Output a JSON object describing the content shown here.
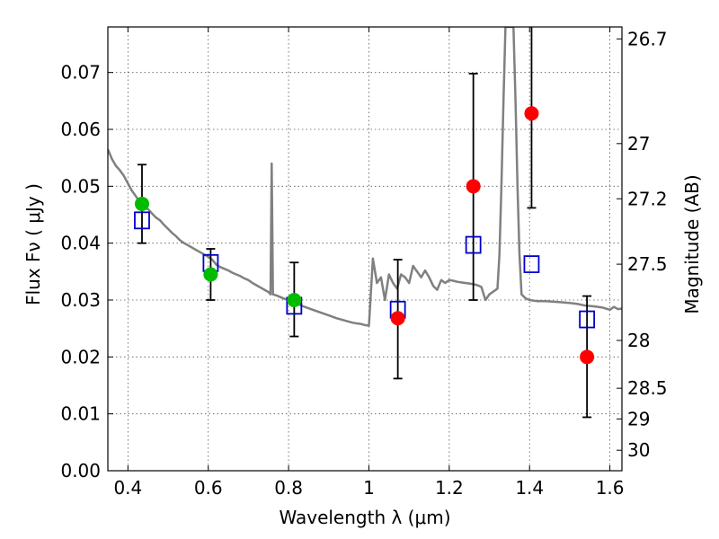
{
  "chart_data": {
    "type": "scatter",
    "xlabel": "Wavelength  λ (μm)",
    "ylabel": "Flux  Fν  ( μJy )",
    "y2label": "Magnitude (AB)",
    "xlim": [
      0.35,
      1.63
    ],
    "ylim": [
      0.0,
      0.078
    ],
    "grid": true,
    "x_ticks": [
      0.4,
      0.6,
      0.8,
      1.0,
      1.2,
      1.4,
      1.6
    ],
    "x_tick_labels": [
      "0.4",
      "0.6",
      "0.8",
      "1",
      "1.2",
      "1.4",
      "1.6"
    ],
    "y_ticks": [
      0.0,
      0.01,
      0.02,
      0.03,
      0.04,
      0.05,
      0.06,
      0.07
    ],
    "y_tick_labels": [
      "0.00",
      "0.01",
      "0.02",
      "0.03",
      "0.04",
      "0.05",
      "0.06",
      "0.07"
    ],
    "y2_ticks": [
      {
        "flux": 0.0759,
        "label": "26.7"
      },
      {
        "flux": 0.0575,
        "label": "27"
      },
      {
        "flux": 0.0478,
        "label": "27.2"
      },
      {
        "flux": 0.0363,
        "label": "27.5"
      },
      {
        "flux": 0.0229,
        "label": "28"
      },
      {
        "flux": 0.0145,
        "label": "28.5"
      },
      {
        "flux": 0.0091,
        "label": "29"
      },
      {
        "flux": 0.0036,
        "label": "30"
      }
    ],
    "colors": {
      "model_line": "#808080",
      "model_points": "#0000cc",
      "detections": "#00bb00",
      "nondetections": "#ff0000",
      "errorbars": "#000000"
    },
    "template_spectrum": [
      [
        0.35,
        0.0565
      ],
      [
        0.36,
        0.0548
      ],
      [
        0.37,
        0.0536
      ],
      [
        0.38,
        0.0528
      ],
      [
        0.39,
        0.0518
      ],
      [
        0.4,
        0.0505
      ],
      [
        0.41,
        0.0492
      ],
      [
        0.42,
        0.0482
      ],
      [
        0.43,
        0.0472
      ],
      [
        0.44,
        0.0462
      ],
      [
        0.45,
        0.046
      ],
      [
        0.46,
        0.0452
      ],
      [
        0.47,
        0.0445
      ],
      [
        0.48,
        0.044
      ],
      [
        0.49,
        0.0432
      ],
      [
        0.5,
        0.0425
      ],
      [
        0.51,
        0.0418
      ],
      [
        0.52,
        0.0412
      ],
      [
        0.53,
        0.0405
      ],
      [
        0.54,
        0.04
      ],
      [
        0.55,
        0.0396
      ],
      [
        0.56,
        0.0392
      ],
      [
        0.57,
        0.0388
      ],
      [
        0.58,
        0.0384
      ],
      [
        0.59,
        0.038
      ],
      [
        0.6,
        0.0376
      ],
      [
        0.61,
        0.0371
      ],
      [
        0.62,
        0.0362
      ],
      [
        0.63,
        0.0358
      ],
      [
        0.64,
        0.0355
      ],
      [
        0.65,
        0.0352
      ],
      [
        0.66,
        0.0348
      ],
      [
        0.67,
        0.0345
      ],
      [
        0.68,
        0.0342
      ],
      [
        0.69,
        0.0338
      ],
      [
        0.7,
        0.0335
      ],
      [
        0.71,
        0.033
      ],
      [
        0.72,
        0.0326
      ],
      [
        0.73,
        0.0322
      ],
      [
        0.74,
        0.0318
      ],
      [
        0.75,
        0.0314
      ],
      [
        0.755,
        0.031
      ],
      [
        0.758,
        0.054
      ],
      [
        0.761,
        0.031
      ],
      [
        0.77,
        0.0308
      ],
      [
        0.78,
        0.0305
      ],
      [
        0.79,
        0.0302
      ],
      [
        0.8,
        0.03
      ],
      [
        0.81,
        0.0297
      ],
      [
        0.82,
        0.0294
      ],
      [
        0.84,
        0.0288
      ],
      [
        0.86,
        0.0283
      ],
      [
        0.88,
        0.0278
      ],
      [
        0.9,
        0.0273
      ],
      [
        0.92,
        0.0268
      ],
      [
        0.94,
        0.0264
      ],
      [
        0.96,
        0.026
      ],
      [
        0.98,
        0.0258
      ],
      [
        0.99,
        0.0256
      ],
      [
        1.0,
        0.0255
      ],
      [
        1.01,
        0.0373
      ],
      [
        1.02,
        0.033
      ],
      [
        1.03,
        0.034
      ],
      [
        1.04,
        0.03
      ],
      [
        1.05,
        0.0345
      ],
      [
        1.06,
        0.033
      ],
      [
        1.07,
        0.032
      ],
      [
        1.08,
        0.0345
      ],
      [
        1.09,
        0.034
      ],
      [
        1.1,
        0.033
      ],
      [
        1.11,
        0.036
      ],
      [
        1.12,
        0.035
      ],
      [
        1.13,
        0.034
      ],
      [
        1.14,
        0.0352
      ],
      [
        1.15,
        0.034
      ],
      [
        1.16,
        0.0325
      ],
      [
        1.17,
        0.0318
      ],
      [
        1.18,
        0.0335
      ],
      [
        1.19,
        0.033
      ],
      [
        1.2,
        0.0335
      ],
      [
        1.21,
        0.0334
      ],
      [
        1.22,
        0.0332
      ],
      [
        1.23,
        0.0331
      ],
      [
        1.24,
        0.033
      ],
      [
        1.25,
        0.0329
      ],
      [
        1.26,
        0.0328
      ],
      [
        1.27,
        0.0326
      ],
      [
        1.28,
        0.0323
      ],
      [
        1.29,
        0.03
      ],
      [
        1.3,
        0.031
      ],
      [
        1.31,
        0.0315
      ],
      [
        1.32,
        0.032
      ],
      [
        1.325,
        0.038
      ],
      [
        1.33,
        0.05
      ],
      [
        1.335,
        0.065
      ],
      [
        1.34,
        0.078
      ],
      [
        1.36,
        0.078
      ],
      [
        1.365,
        0.065
      ],
      [
        1.37,
        0.05
      ],
      [
        1.375,
        0.038
      ],
      [
        1.38,
        0.031
      ],
      [
        1.39,
        0.0303
      ],
      [
        1.4,
        0.03
      ],
      [
        1.42,
        0.0298
      ],
      [
        1.44,
        0.0298
      ],
      [
        1.46,
        0.0297
      ],
      [
        1.48,
        0.0296
      ],
      [
        1.5,
        0.0295
      ],
      [
        1.52,
        0.0293
      ],
      [
        1.54,
        0.029
      ],
      [
        1.56,
        0.0289
      ],
      [
        1.58,
        0.0287
      ],
      [
        1.6,
        0.0283
      ],
      [
        1.61,
        0.0288
      ],
      [
        1.62,
        0.0284
      ],
      [
        1.63,
        0.0285
      ]
    ],
    "model_points": [
      {
        "x": 0.435,
        "y": 0.044
      },
      {
        "x": 0.606,
        "y": 0.0365
      },
      {
        "x": 0.814,
        "y": 0.029
      },
      {
        "x": 1.072,
        "y": 0.0283
      },
      {
        "x": 1.26,
        "y": 0.0397
      },
      {
        "x": 1.405,
        "y": 0.0363
      },
      {
        "x": 1.543,
        "y": 0.0266
      }
    ],
    "detections": [
      {
        "x": 0.435,
        "y": 0.0469,
        "yerr_low": 0.04,
        "yerr_high": 0.0538
      },
      {
        "x": 0.606,
        "y": 0.0345,
        "yerr_low": 0.03,
        "yerr_high": 0.039
      },
      {
        "x": 0.814,
        "y": 0.03,
        "yerr_low": 0.0236,
        "yerr_high": 0.0366
      }
    ],
    "nondetections": [
      {
        "x": 1.072,
        "y": 0.0268,
        "yerr_low": 0.0162,
        "yerr_high": 0.0371
      },
      {
        "x": 1.26,
        "y": 0.05,
        "yerr_low": 0.03,
        "yerr_high": 0.0698
      },
      {
        "x": 1.405,
        "y": 0.0628,
        "yerr_low": 0.0462,
        "yerr_high": 0.078
      },
      {
        "x": 1.543,
        "y": 0.02,
        "yerr_low": 0.0094,
        "yerr_high": 0.0307
      }
    ]
  }
}
